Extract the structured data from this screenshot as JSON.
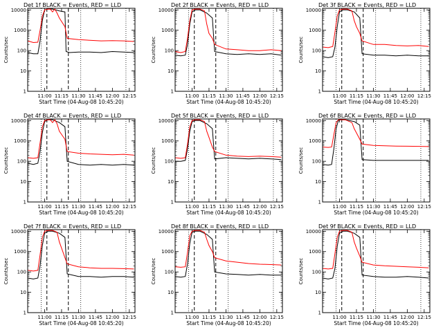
{
  "chart_data": [
    {
      "type": "line",
      "title": "Det 1f BLACK = Events, RED = LLD",
      "xlabel": "Start Time (04-Aug-08 10:45:20)",
      "ylabel": "Counts/sec",
      "yscale": "log",
      "ylim": [
        1,
        12000
      ],
      "xlim_min": [
        0,
        95
      ],
      "x_ticks": [
        "11:00",
        "11:15",
        "11:30",
        "11:45",
        "12:00",
        "12:15"
      ],
      "y_ticks": [
        "1",
        "10",
        "100",
        "1000",
        "10000"
      ],
      "series": [
        {
          "color": "#000000",
          "x": [
            0,
            5,
            9,
            11,
            13,
            15,
            18,
            22,
            28,
            33,
            34,
            37,
            45,
            55,
            65,
            75,
            85,
            94
          ],
          "y": [
            80,
            70,
            70,
            300,
            3000,
            10000,
            11000,
            11000,
            9000,
            8000,
            90,
            80,
            85,
            85,
            80,
            90,
            85,
            80
          ]
        },
        {
          "color": "#ff0000",
          "x": [
            0,
            5,
            9,
            11,
            13,
            15,
            18,
            20,
            22,
            24,
            26,
            28,
            33,
            35,
            45,
            55,
            65,
            75,
            85,
            94
          ],
          "y": [
            300,
            250,
            260,
            1000,
            5000,
            10000,
            11000,
            11000,
            8000,
            11000,
            7000,
            4000,
            1500,
            400,
            350,
            320,
            300,
            310,
            300,
            280
          ]
        }
      ]
    },
    {
      "type": "line",
      "title": "Det 2f BLACK = Events, RED = LLD",
      "xlabel": "Start Time (04-Aug-08 10:45:20)",
      "ylabel": "Counts/sec",
      "yscale": "log",
      "ylim": [
        1,
        12000
      ],
      "xlim_min": [
        0,
        95
      ],
      "x_ticks": [
        "11:00",
        "11:15",
        "11:30",
        "11:45",
        "12:00",
        "12:15"
      ],
      "y_ticks": [
        "1",
        "10",
        "100",
        "1000",
        "10000"
      ],
      "series": [
        {
          "color": "#000000",
          "x": [
            0,
            5,
            9,
            11,
            13,
            15,
            18,
            22,
            28,
            33,
            35,
            45,
            55,
            65,
            75,
            85,
            94
          ],
          "y": [
            60,
            55,
            60,
            200,
            2000,
            8000,
            10000,
            10000,
            7000,
            4000,
            90,
            70,
            65,
            70,
            65,
            70,
            60
          ]
        },
        {
          "color": "#ff0000",
          "x": [
            0,
            5,
            9,
            11,
            13,
            15,
            18,
            22,
            26,
            28,
            30,
            33,
            35,
            45,
            55,
            65,
            75,
            85,
            94
          ],
          "y": [
            90,
            80,
            90,
            400,
            3000,
            10000,
            11000,
            11000,
            9000,
            2000,
            700,
            400,
            200,
            120,
            110,
            100,
            100,
            110,
            100
          ]
        }
      ]
    },
    {
      "type": "line",
      "title": "Det 3f BLACK = Events, RED = LLD",
      "xlabel": "Start Time (04-Aug-08 10:45:20)",
      "ylabel": "Counts/sec",
      "yscale": "log",
      "ylim": [
        1,
        12000
      ],
      "xlim_min": [
        0,
        95
      ],
      "x_ticks": [
        "11:00",
        "11:15",
        "11:30",
        "11:45",
        "12:00",
        "12:15"
      ],
      "y_ticks": [
        "1",
        "10",
        "100",
        "1000",
        "10000"
      ],
      "series": [
        {
          "color": "#000000",
          "x": [
            0,
            5,
            9,
            11,
            13,
            15,
            18,
            22,
            28,
            33,
            35,
            45,
            55,
            65,
            75,
            85,
            94
          ],
          "y": [
            50,
            45,
            50,
            150,
            1500,
            8000,
            10000,
            10000,
            8000,
            4000,
            70,
            60,
            60,
            55,
            60,
            55,
            55
          ]
        },
        {
          "color": "#ff0000",
          "x": [
            0,
            5,
            9,
            11,
            13,
            15,
            18,
            22,
            26,
            28,
            30,
            33,
            35,
            45,
            55,
            65,
            75,
            85,
            94
          ],
          "y": [
            150,
            140,
            160,
            800,
            5000,
            10000,
            11000,
            11000,
            9000,
            3000,
            1500,
            700,
            300,
            200,
            200,
            180,
            170,
            180,
            160
          ]
        }
      ]
    },
    {
      "type": "line",
      "title": "Det 4f BLACK = Events, RED = LLD",
      "xlabel": "Start Time (04-Aug-08 10:45:20)",
      "ylabel": "Counts/sec",
      "yscale": "log",
      "ylim": [
        1,
        12000
      ],
      "xlim_min": [
        0,
        95
      ],
      "x_ticks": [
        "11:00",
        "11:15",
        "11:30",
        "11:45",
        "12:00",
        "12:15"
      ],
      "y_ticks": [
        "1",
        "10",
        "100",
        "1000",
        "10000"
      ],
      "series": [
        {
          "color": "#000000",
          "x": [
            0,
            5,
            9,
            11,
            13,
            15,
            18,
            22,
            28,
            33,
            35,
            45,
            55,
            65,
            75,
            85,
            94
          ],
          "y": [
            80,
            70,
            80,
            300,
            2500,
            9000,
            11000,
            11000,
            8000,
            5000,
            100,
            70,
            65,
            70,
            65,
            70,
            65
          ]
        },
        {
          "color": "#ff0000",
          "x": [
            0,
            5,
            9,
            11,
            13,
            15,
            18,
            20,
            22,
            24,
            26,
            28,
            33,
            35,
            45,
            55,
            65,
            75,
            85,
            94
          ],
          "y": [
            150,
            140,
            150,
            800,
            5000,
            10000,
            11000,
            11000,
            8000,
            11000,
            7000,
            3000,
            1200,
            300,
            250,
            230,
            220,
            210,
            220,
            200
          ]
        }
      ]
    },
    {
      "type": "line",
      "title": "Det 5f BLACK = Events, RED = LLD",
      "xlabel": "Start Time (04-Aug-08 10:45:20)",
      "ylabel": "Counts/sec",
      "yscale": "log",
      "ylim": [
        1,
        12000
      ],
      "xlim_min": [
        0,
        95
      ],
      "x_ticks": [
        "11:00",
        "11:15",
        "11:30",
        "11:45",
        "12:00",
        "12:15"
      ],
      "y_ticks": [
        "1",
        "10",
        "100",
        "1000",
        "10000"
      ],
      "series": [
        {
          "color": "#000000",
          "x": [
            0,
            5,
            9,
            11,
            13,
            15,
            18,
            22,
            28,
            33,
            35,
            45,
            55,
            65,
            75,
            85,
            94
          ],
          "y": [
            100,
            100,
            110,
            400,
            3000,
            9000,
            10000,
            10000,
            7000,
            4000,
            130,
            150,
            140,
            130,
            140,
            130,
            120
          ]
        },
        {
          "color": "#ff0000",
          "x": [
            0,
            5,
            9,
            11,
            13,
            15,
            18,
            22,
            26,
            28,
            30,
            33,
            35,
            45,
            55,
            65,
            75,
            85,
            94
          ],
          "y": [
            150,
            140,
            150,
            700,
            5000,
            10000,
            11000,
            11000,
            9000,
            3000,
            1500,
            500,
            300,
            200,
            180,
            170,
            180,
            170,
            160
          ]
        }
      ]
    },
    {
      "type": "line",
      "title": "Det 6f BLACK = Events, RED = LLD",
      "xlabel": "Start Time (04-Aug-08 10:45:20)",
      "ylabel": "Counts/sec",
      "yscale": "log",
      "ylim": [
        1,
        12000
      ],
      "xlim_min": [
        0,
        95
      ],
      "x_ticks": [
        "11:00",
        "11:15",
        "11:30",
        "11:45",
        "12:00",
        "12:15"
      ],
      "y_ticks": [
        "1",
        "10",
        "100",
        "1000",
        "10000"
      ],
      "series": [
        {
          "color": "#000000",
          "x": [
            0,
            5,
            8,
            10,
            12,
            14,
            16,
            20,
            28,
            33,
            35,
            45,
            55,
            65,
            75,
            85,
            94
          ],
          "y": [
            70,
            65,
            70,
            400,
            4000,
            10000,
            11000,
            11000,
            9000,
            6000,
            120,
            110,
            110,
            110,
            110,
            110,
            110
          ]
        },
        {
          "color": "#ff0000",
          "x": [
            0,
            5,
            8,
            10,
            12,
            14,
            16,
            20,
            26,
            28,
            30,
            33,
            35,
            45,
            55,
            65,
            75,
            85,
            94
          ],
          "y": [
            500,
            480,
            500,
            2000,
            8000,
            11000,
            11000,
            11000,
            8000,
            4000,
            2500,
            1200,
            700,
            600,
            580,
            560,
            550,
            540,
            530
          ]
        }
      ]
    },
    {
      "type": "line",
      "title": "Det 7f BLACK = Events, RED = LLD",
      "xlabel": "Start Time (04-Aug-08 10:45:20)",
      "ylabel": "Counts/sec",
      "yscale": "log",
      "ylim": [
        1,
        12000
      ],
      "xlim_min": [
        0,
        95
      ],
      "x_ticks": [
        "11:00",
        "11:15",
        "11:30",
        "11:45",
        "12:00",
        "12:15"
      ],
      "y_ticks": [
        "1",
        "10",
        "100",
        "1000",
        "10000"
      ],
      "series": [
        {
          "color": "#000000",
          "x": [
            0,
            5,
            9,
            11,
            13,
            15,
            18,
            22,
            28,
            33,
            35,
            45,
            55,
            65,
            75,
            85,
            94
          ],
          "y": [
            50,
            45,
            50,
            200,
            2000,
            8000,
            10000,
            10000,
            8000,
            5000,
            80,
            60,
            60,
            55,
            60,
            60,
            55
          ]
        },
        {
          "color": "#ff0000",
          "x": [
            0,
            5,
            9,
            11,
            13,
            15,
            18,
            22,
            26,
            28,
            30,
            33,
            35,
            45,
            55,
            65,
            75,
            85,
            94
          ],
          "y": [
            120,
            110,
            120,
            700,
            5000,
            10000,
            11000,
            11000,
            9000,
            3000,
            1500,
            500,
            250,
            180,
            160,
            150,
            150,
            145,
            140
          ]
        }
      ]
    },
    {
      "type": "line",
      "title": "Det 8f BLACK = Events, RED = LLD",
      "xlabel": "Start Time (04-Aug-08 10:45:20)",
      "ylabel": "Counts/sec",
      "yscale": "log",
      "ylim": [
        1,
        12000
      ],
      "xlim_min": [
        0,
        95
      ],
      "x_ticks": [
        "11:00",
        "11:15",
        "11:30",
        "11:45",
        "12:00",
        "12:15"
      ],
      "y_ticks": [
        "1",
        "10",
        "100",
        "1000",
        "10000"
      ],
      "series": [
        {
          "color": "#000000",
          "x": [
            0,
            5,
            9,
            11,
            13,
            15,
            18,
            22,
            28,
            33,
            35,
            45,
            55,
            65,
            75,
            85,
            94
          ],
          "y": [
            60,
            55,
            60,
            250,
            2500,
            9000,
            10000,
            10000,
            7000,
            4000,
            100,
            80,
            75,
            70,
            75,
            70,
            70
          ]
        },
        {
          "color": "#ff0000",
          "x": [
            0,
            5,
            9,
            11,
            13,
            15,
            18,
            22,
            26,
            28,
            30,
            33,
            35,
            45,
            55,
            65,
            75,
            85,
            94
          ],
          "y": [
            180,
            170,
            180,
            900,
            6000,
            10000,
            11000,
            11000,
            9000,
            4000,
            2000,
            1000,
            500,
            350,
            300,
            260,
            240,
            230,
            220
          ]
        }
      ]
    },
    {
      "type": "line",
      "title": "Det 9f BLACK = Events, RED = LLD",
      "xlabel": "Start Time (04-Aug-08 10:45:20)",
      "ylabel": "Counts/sec",
      "yscale": "log",
      "ylim": [
        1,
        12000
      ],
      "xlim_min": [
        0,
        95
      ],
      "x_ticks": [
        "11:00",
        "11:15",
        "11:30",
        "11:45",
        "12:00",
        "12:15"
      ],
      "y_ticks": [
        "1",
        "10",
        "100",
        "1000",
        "10000"
      ],
      "series": [
        {
          "color": "#000000",
          "x": [
            0,
            5,
            9,
            11,
            13,
            15,
            18,
            22,
            28,
            33,
            35,
            45,
            55,
            65,
            75,
            85,
            94
          ],
          "y": [
            50,
            45,
            50,
            150,
            1800,
            8000,
            10000,
            10000,
            8000,
            5000,
            70,
            60,
            55,
            55,
            60,
            55,
            50
          ]
        },
        {
          "color": "#ff0000",
          "x": [
            0,
            5,
            9,
            11,
            13,
            15,
            18,
            22,
            26,
            28,
            30,
            33,
            35,
            45,
            55,
            65,
            75,
            85,
            94
          ],
          "y": [
            150,
            140,
            150,
            800,
            5000,
            10000,
            11000,
            11000,
            9000,
            3000,
            1500,
            600,
            300,
            220,
            200,
            190,
            180,
            170,
            160
          ]
        }
      ]
    }
  ]
}
